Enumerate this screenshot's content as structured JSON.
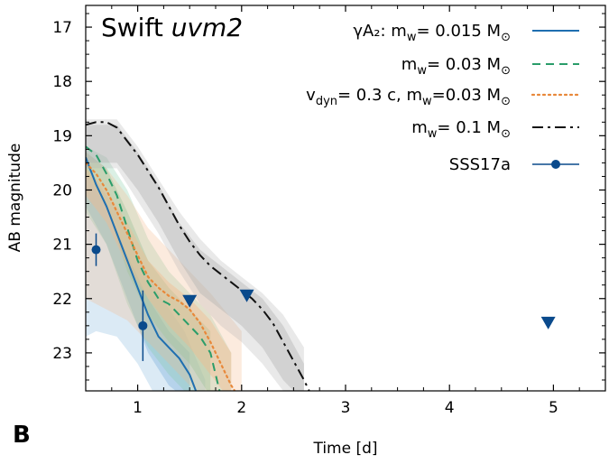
{
  "panel_label": "B",
  "chart_data": {
    "type": "line",
    "title_main": "Swift ",
    "title_italic": "uvm2",
    "xlabel": "Time [d]",
    "ylabel": "AB magnitude",
    "xlim": [
      0.5,
      5.5
    ],
    "ylim": [
      23.7,
      16.6
    ],
    "xticks": [
      1,
      2,
      3,
      4,
      5
    ],
    "xtick_labels": [
      "1",
      "2",
      "3",
      "4",
      "5"
    ],
    "yticks": [
      17,
      18,
      19,
      20,
      21,
      22,
      23
    ],
    "ytick_labels": [
      "17",
      "18",
      "19",
      "20",
      "21",
      "22",
      "23"
    ],
    "legend_position": "top-right",
    "legend": [
      {
        "id": "s1",
        "label": "γA₂: m",
        "sub": "w",
        "tail": "= 0.015 M",
        "sun": "⊙",
        "tail2": ""
      },
      {
        "id": "s2",
        "label": "m",
        "sub": "w",
        "tail": "= 0.03 M",
        "sun": "⊙",
        "tail2": ""
      },
      {
        "id": "s3",
        "label": "v",
        "sub": "dyn",
        "tail": "= 0.3 c, m",
        "sub2": "w",
        "tail2": "=0.03 M",
        "sun": "⊙"
      },
      {
        "id": "s4",
        "label": "m",
        "sub": "w",
        "tail": "= 0.1 M",
        "sun": "⊙",
        "tail2": ""
      },
      {
        "id": "obs",
        "label": "SSS17a"
      }
    ],
    "series": [
      {
        "name": "γA2: mw= 0.015 Msun",
        "color": "#1f6fb0",
        "style": "solid",
        "x": [
          0.5,
          0.6,
          0.7,
          0.8,
          0.9,
          1.0,
          1.1,
          1.2,
          1.3,
          1.4,
          1.5,
          1.6
        ],
        "y": [
          19.4,
          19.9,
          20.3,
          20.8,
          21.3,
          21.8,
          22.3,
          22.7,
          22.9,
          23.1,
          23.4,
          23.9
        ],
        "band_inner": [
          [
            0.5,
            19.7,
            20.3
          ],
          [
            0.7,
            20.3,
            21.0
          ],
          [
            0.9,
            21.2,
            22.0
          ],
          [
            1.1,
            22.0,
            23.0
          ],
          [
            1.3,
            22.6,
            23.6
          ],
          [
            1.5,
            23.0,
            23.9
          ]
        ],
        "band_outer": [
          [
            0.5,
            19.5,
            22.7
          ],
          [
            0.6,
            19.8,
            22.6
          ],
          [
            0.8,
            20.4,
            22.7
          ],
          [
            1.0,
            21.2,
            23.2
          ],
          [
            1.2,
            21.9,
            23.9
          ],
          [
            1.45,
            22.6,
            23.9
          ],
          [
            1.65,
            23.5,
            23.9
          ]
        ],
        "band_color": "#7fb2dc"
      },
      {
        "name": "mw= 0.03 Msun",
        "color": "#2a9d6a",
        "style": "dashed",
        "x": [
          0.5,
          0.6,
          0.7,
          0.8,
          0.9,
          1.0,
          1.1,
          1.2,
          1.3,
          1.4,
          1.5,
          1.6,
          1.7,
          1.8
        ],
        "y": [
          19.2,
          19.35,
          19.7,
          20.1,
          20.7,
          21.3,
          21.7,
          22.0,
          22.1,
          22.3,
          22.5,
          22.7,
          23.0,
          23.8
        ],
        "band_inner": [
          [
            0.5,
            19.3,
            19.7
          ],
          [
            0.7,
            19.6,
            20.3
          ],
          [
            0.9,
            20.4,
            21.5
          ],
          [
            1.1,
            21.3,
            22.3
          ],
          [
            1.3,
            21.8,
            22.8
          ],
          [
            1.5,
            22.2,
            23.2
          ],
          [
            1.7,
            22.6,
            23.8
          ]
        ],
        "band_outer": [
          [
            0.5,
            19.2,
            20.4
          ],
          [
            0.7,
            19.4,
            21.0
          ],
          [
            0.9,
            20.0,
            22.1
          ],
          [
            1.1,
            20.9,
            22.9
          ],
          [
            1.3,
            21.5,
            23.4
          ],
          [
            1.5,
            21.9,
            23.8
          ],
          [
            1.7,
            22.3,
            23.9
          ],
          [
            1.9,
            23.0,
            23.9
          ]
        ],
        "band_color": "#7fc8a0"
      },
      {
        "name": "vdyn= 0.3 c, mw=0.03 Msun",
        "color": "#e8883a",
        "style": "dotted",
        "x": [
          0.5,
          0.6,
          0.7,
          0.8,
          0.9,
          1.0,
          1.1,
          1.2,
          1.3,
          1.4,
          1.5,
          1.6,
          1.7,
          1.8,
          1.9,
          2.0
        ],
        "y": [
          19.5,
          19.7,
          20.0,
          20.4,
          20.8,
          21.2,
          21.6,
          21.8,
          21.95,
          22.05,
          22.2,
          22.45,
          22.8,
          23.2,
          23.6,
          23.9
        ],
        "band_inner": [
          [
            0.5,
            19.6,
            20.1
          ],
          [
            0.7,
            20.0,
            20.6
          ],
          [
            0.9,
            20.6,
            21.4
          ],
          [
            1.1,
            21.3,
            22.0
          ],
          [
            1.3,
            21.7,
            22.5
          ],
          [
            1.5,
            22.0,
            22.9
          ],
          [
            1.7,
            22.4,
            23.4
          ],
          [
            1.9,
            23.0,
            23.9
          ]
        ],
        "band_outer": [
          [
            0.5,
            19.3,
            22.0
          ],
          [
            0.7,
            19.6,
            22.2
          ],
          [
            0.9,
            20.1,
            22.4
          ],
          [
            1.1,
            20.7,
            22.8
          ],
          [
            1.3,
            21.1,
            23.2
          ],
          [
            1.5,
            21.5,
            23.6
          ],
          [
            1.7,
            21.9,
            23.9
          ],
          [
            2.0,
            22.6,
            23.9
          ]
        ],
        "band_color": "#f6b88a"
      },
      {
        "name": "mw= 0.1 Msun",
        "color": "#111111",
        "style": "dashdot",
        "x": [
          0.5,
          0.6,
          0.7,
          0.8,
          0.9,
          1.0,
          1.1,
          1.2,
          1.3,
          1.4,
          1.5,
          1.6,
          1.7,
          1.8,
          1.9,
          2.0,
          2.1,
          2.2,
          2.3,
          2.4,
          2.5,
          2.6,
          2.7
        ],
        "y": [
          18.8,
          18.75,
          18.75,
          18.85,
          19.1,
          19.35,
          19.65,
          19.95,
          20.3,
          20.65,
          20.95,
          21.2,
          21.4,
          21.55,
          21.7,
          21.85,
          22.0,
          22.2,
          22.45,
          22.8,
          23.15,
          23.5,
          23.9
        ],
        "band_inner": [
          [
            0.5,
            18.8,
            19.5
          ],
          [
            0.8,
            18.8,
            19.5
          ],
          [
            1.0,
            19.3,
            20.0
          ],
          [
            1.2,
            19.9,
            20.6
          ],
          [
            1.4,
            20.6,
            21.3
          ],
          [
            1.6,
            21.1,
            21.9
          ],
          [
            1.8,
            21.4,
            22.2
          ],
          [
            2.0,
            21.7,
            22.5
          ],
          [
            2.2,
            22.0,
            22.9
          ],
          [
            2.4,
            22.5,
            23.5
          ],
          [
            2.6,
            23.2,
            23.9
          ]
        ],
        "band_outer": [
          [
            0.5,
            18.7,
            19.6
          ],
          [
            0.8,
            18.7,
            19.6
          ],
          [
            1.0,
            19.2,
            20.2
          ],
          [
            1.2,
            19.8,
            20.8
          ],
          [
            1.4,
            20.4,
            21.5
          ],
          [
            1.6,
            20.9,
            22.1
          ],
          [
            1.8,
            21.3,
            22.5
          ],
          [
            2.0,
            21.6,
            22.8
          ],
          [
            2.2,
            21.9,
            23.2
          ],
          [
            2.4,
            22.3,
            23.7
          ],
          [
            2.6,
            22.9,
            23.9
          ]
        ],
        "band_color": "#b0b0b0"
      }
    ],
    "observations": {
      "name": "SSS17a",
      "color": "#0a4a8c",
      "detections": [
        {
          "x": 0.6,
          "y": 21.1,
          "err": 0.3
        },
        {
          "x": 1.05,
          "y": 22.5,
          "err": 0.65
        }
      ],
      "upper_limits": [
        {
          "x": 1.5,
          "y": 22.05
        },
        {
          "x": 2.05,
          "y": 21.95
        },
        {
          "x": 4.95,
          "y": 22.45
        }
      ]
    }
  }
}
